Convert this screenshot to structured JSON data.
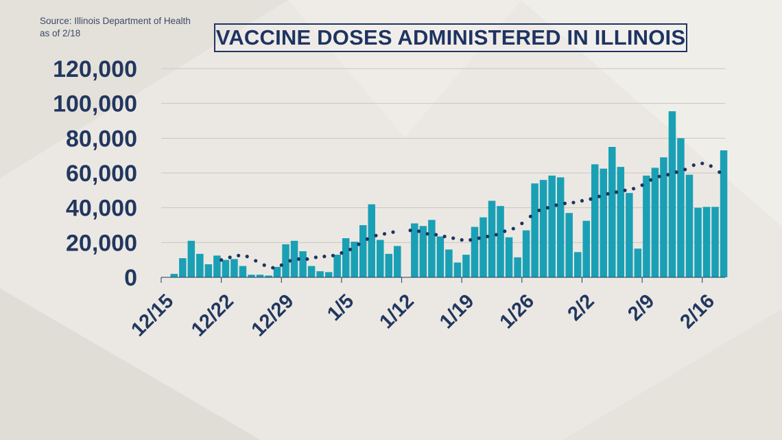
{
  "source": {
    "line1": "Source:  Illinois Department of Health",
    "line2": "as of 2/18"
  },
  "colors": {
    "bar": "#1aa0b5",
    "trend": "#1e3462",
    "axis_text": "#22375f",
    "background": "#ebe8e3"
  },
  "chart_data": {
    "type": "bar",
    "title": "VACCINE DOSES ADMINISTERED IN ILLINOIS",
    "xlabel": "",
    "ylabel": "",
    "ylim": [
      0,
      120000
    ],
    "yticks": [
      0,
      20000,
      40000,
      60000,
      80000,
      100000,
      120000
    ],
    "ytick_labels": [
      "0",
      "20,000",
      "40,000",
      "60,000",
      "80,000",
      "100,000",
      "120,000"
    ],
    "grid": "horizontal",
    "x_tick_labels": [
      "12/15",
      "12/22",
      "12/29",
      "1/5",
      "1/12",
      "1/19",
      "1/26",
      "2/2",
      "2/9",
      "2/16"
    ],
    "x_tick_days": [
      0,
      7,
      14,
      21,
      28,
      35,
      42,
      49,
      56,
      63
    ],
    "days": [
      1,
      2,
      3,
      4,
      5,
      6,
      7,
      8,
      9,
      10,
      11,
      12,
      13,
      14,
      15,
      16,
      17,
      18,
      19,
      20,
      21,
      22,
      23,
      24,
      25,
      26,
      27,
      29,
      30,
      31,
      32,
      33,
      34,
      35,
      36,
      37,
      38,
      39,
      40,
      41,
      42,
      43,
      44,
      45,
      46,
      47,
      48,
      49,
      50,
      51,
      52,
      53,
      54,
      55,
      56,
      57,
      58,
      59,
      60,
      61,
      62,
      63,
      64,
      65
    ],
    "series": [
      {
        "name": "",
        "type": "bar",
        "values": [
          2000,
          11000,
          21000,
          13500,
          7500,
          12500,
          10000,
          10500,
          6500,
          1500,
          1500,
          1000,
          6000,
          19000,
          21000,
          15000,
          6500,
          3500,
          3000,
          13000,
          22500,
          20500,
          30000,
          42000,
          21500,
          13500,
          18000,
          31000,
          29500,
          33000,
          23500,
          16000,
          8500,
          13000,
          29000,
          34500,
          44000,
          41000,
          23000,
          11500,
          27000,
          54000,
          56000,
          58500,
          57500,
          37000,
          14500,
          32500,
          65000,
          62500,
          75000,
          63500,
          48500,
          16500,
          58500,
          63000,
          69000,
          95500,
          80000,
          59000,
          40000,
          40500,
          40500,
          73000
        ]
      },
      {
        "name": "",
        "type": "line",
        "style": "dotted",
        "days": [
          7,
          8,
          9,
          10,
          11,
          12,
          13,
          14,
          15,
          16,
          17,
          18,
          19,
          20,
          21,
          22,
          23,
          24,
          25,
          26,
          27,
          29,
          30,
          31,
          32,
          33,
          34,
          35,
          36,
          37,
          38,
          39,
          40,
          41,
          42,
          43,
          44,
          45,
          46,
          47,
          48,
          49,
          50,
          51,
          52,
          53,
          54,
          55,
          56,
          57,
          58,
          59,
          60,
          61,
          62,
          63,
          64,
          65
        ],
        "values": [
          10000,
          11500,
          12500,
          12000,
          9500,
          7000,
          5500,
          7000,
          9500,
          10500,
          10500,
          11500,
          12000,
          12500,
          14000,
          16000,
          19000,
          22000,
          24000,
          25000,
          26000,
          27000,
          26500,
          25000,
          24500,
          23500,
          22500,
          21500,
          21500,
          22500,
          23500,
          24500,
          26500,
          28000,
          31000,
          35000,
          38500,
          40000,
          41500,
          42500,
          43000,
          44000,
          45000,
          46500,
          48000,
          49000,
          50000,
          51000,
          53000,
          56000,
          58000,
          59000,
          60500,
          62000,
          64500,
          65500,
          64000,
          60500
        ]
      }
    ]
  }
}
